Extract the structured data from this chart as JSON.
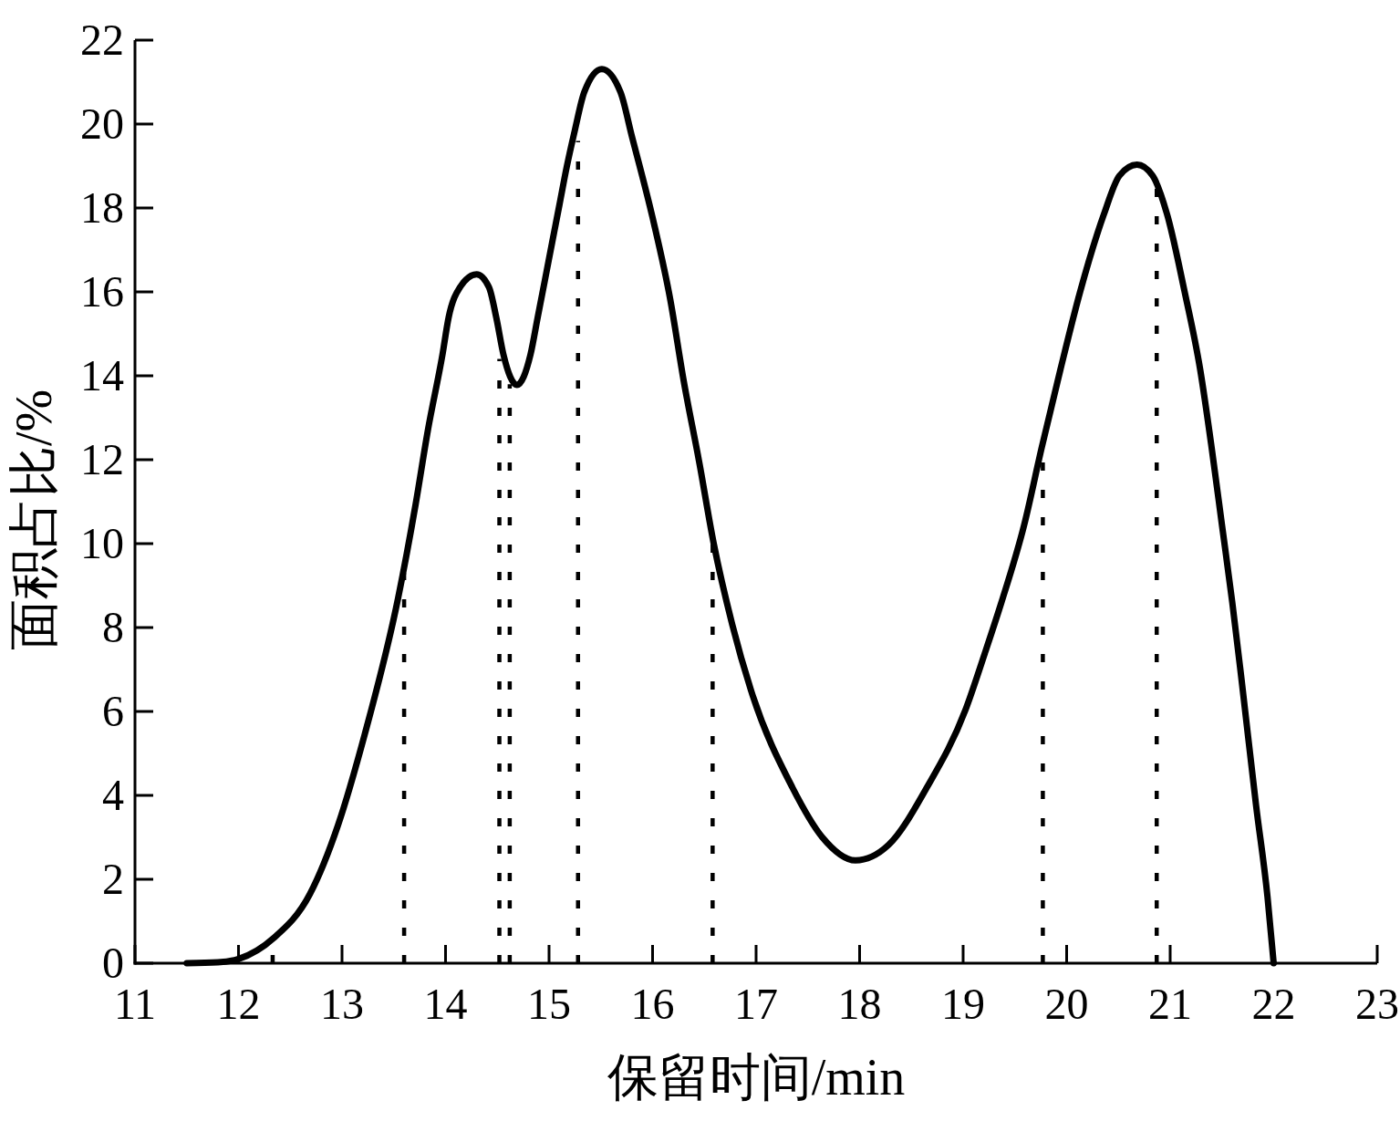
{
  "chart_data": {
    "type": "line",
    "xlabel": "保留时间/min",
    "ylabel": "面积占比/%",
    "x": [
      11.5,
      11.8,
      12.0,
      12.34,
      12.69,
      12.96,
      13.22,
      13.54,
      13.71,
      13.83,
      13.97,
      14.03,
      14.14,
      14.3,
      14.42,
      14.49,
      14.56,
      14.69,
      14.82,
      14.89,
      14.96,
      15.03,
      15.1,
      15.17,
      15.25,
      15.34,
      15.51,
      15.69,
      15.8,
      16.0,
      16.17,
      16.3,
      16.45,
      16.59,
      16.77,
      16.95,
      17.35,
      17.64,
      17.96,
      18.28,
      18.65,
      19.02,
      19.21,
      19.37,
      19.59,
      19.76,
      19.94,
      20.13,
      20.36,
      20.51,
      20.68,
      20.83,
      20.97,
      21.14,
      21.29,
      21.4,
      21.5,
      21.6,
      21.69,
      21.83,
      21.94,
      22.0
    ],
    "series": [
      {
        "color": "#000000",
        "values": [
          0,
          0.02,
          0.1,
          0.6,
          1.65,
          3.28,
          5.46,
          8.68,
          10.92,
          12.71,
          14.5,
          15.39,
          16.11,
          16.42,
          16.11,
          15.39,
          14.5,
          13.78,
          14.5,
          15.39,
          16.28,
          17.18,
          18.07,
          18.97,
          19.86,
          20.76,
          21.31,
          20.76,
          19.71,
          17.77,
          15.83,
          13.89,
          11.95,
          10.01,
          8.07,
          6.51,
          4.19,
          3.0,
          2.45,
          2.82,
          4.19,
          6.02,
          7.39,
          8.6,
          10.45,
          12.3,
          14.15,
          16.0,
          17.85,
          18.77,
          19.03,
          18.77,
          17.85,
          16.0,
          14.15,
          12.3,
          10.45,
          8.6,
          6.75,
          3.76,
          1.59,
          0
        ]
      },
      {
        "type": "line",
        "color": "#000000",
        "line_style": "dotted",
        "x": [
          12.33,
          12.33
        ],
        "values": [
          0,
          0.6
        ]
      },
      {
        "type": "line",
        "color": "#000000",
        "line_style": "dotted",
        "x": [
          13.6,
          13.6
        ],
        "values": [
          0,
          9.3
        ]
      },
      {
        "type": "line",
        "color": "#000000",
        "line_style": "dotted",
        "x": [
          14.52,
          14.52
        ],
        "values": [
          0,
          14.4
        ]
      },
      {
        "type": "line",
        "color": "#000000",
        "line_style": "dotted",
        "x": [
          14.62,
          14.62
        ],
        "values": [
          0,
          13.8
        ]
      },
      {
        "type": "line",
        "color": "#000000",
        "line_style": "dotted",
        "x": [
          15.28,
          15.28
        ],
        "values": [
          0,
          19.6
        ]
      },
      {
        "type": "line",
        "color": "#000000",
        "line_style": "dotted",
        "x": [
          16.58,
          16.58
        ],
        "values": [
          0,
          10.0
        ]
      },
      {
        "type": "line",
        "color": "#000000",
        "line_style": "dotted",
        "x": [
          19.77,
          19.77
        ],
        "values": [
          0,
          12.3
        ]
      },
      {
        "type": "line",
        "color": "#000000",
        "line_style": "dotted",
        "x": [
          20.87,
          20.87
        ],
        "values": [
          0,
          18.5
        ]
      }
    ],
    "line_style": "solid",
    "xlim": [
      11,
      23
    ],
    "ylim": [
      0,
      22
    ],
    "xticks": [
      11,
      12,
      13,
      14,
      15,
      16,
      17,
      18,
      19,
      20,
      21,
      22,
      23
    ],
    "yticks": [
      0,
      2,
      4,
      6,
      8,
      10,
      12,
      14,
      16,
      18,
      20,
      22
    ]
  }
}
